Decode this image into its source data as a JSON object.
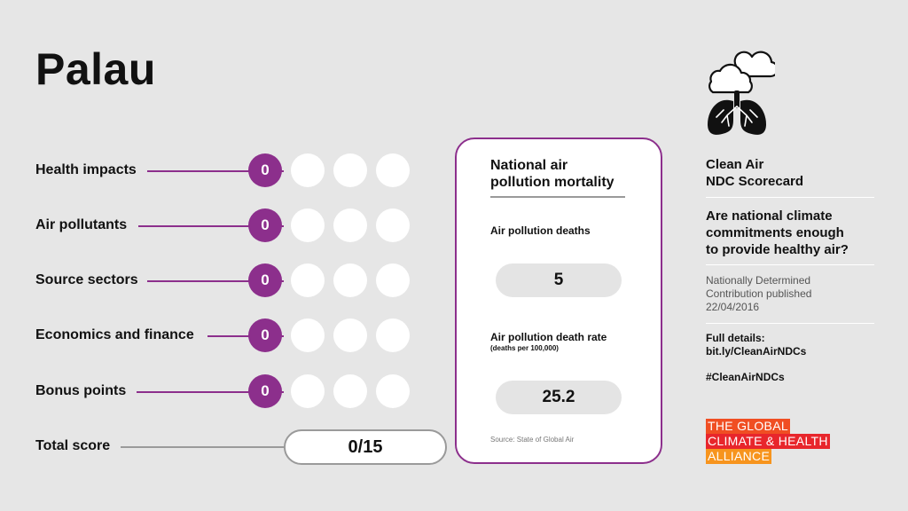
{
  "country": "Palau",
  "categories": [
    {
      "label": "Health impacts",
      "score": "0"
    },
    {
      "label": "Air pollutants",
      "score": "0"
    },
    {
      "label": "Source sectors",
      "score": "0"
    },
    {
      "label": "Economics and finance",
      "score": "0"
    },
    {
      "label": "Bonus points",
      "score": "0"
    }
  ],
  "total": {
    "label": "Total score",
    "value": "0/15"
  },
  "mortality": {
    "title": "National air pollution mortality",
    "deaths_label": "Air pollution deaths",
    "deaths_value": "5",
    "rate_label": "Air pollution death rate",
    "rate_sub": "(deaths per 100,000)",
    "rate_value": "25.2",
    "source": "Source: State of Global Air"
  },
  "scorecard": {
    "title_line1": "Clean Air",
    "title_line2": "NDC Scorecard",
    "question_line1": "Are national climate",
    "question_line2": "commitments enough",
    "question_line3": "to provide healthy air?",
    "ndc_line1": "Nationally Determined",
    "ndc_line2": "Contribution published",
    "ndc_date": "22/04/2016",
    "details_label": "Full details:",
    "details_link": "bit.ly/CleanAirNDCs",
    "hashtag": "#CleanAirNDCs"
  },
  "logo": {
    "line1": "THE GLOBAL",
    "line2": "CLIMATE & HEALTH",
    "line3": "ALLIANCE",
    "colors": [
      "#f04e23",
      "#e8262c",
      "#f7941d"
    ]
  },
  "colors": {
    "accent": "#8c2f8c",
    "background": "#e6e6e6"
  },
  "icon": "clouds-lungs-icon"
}
